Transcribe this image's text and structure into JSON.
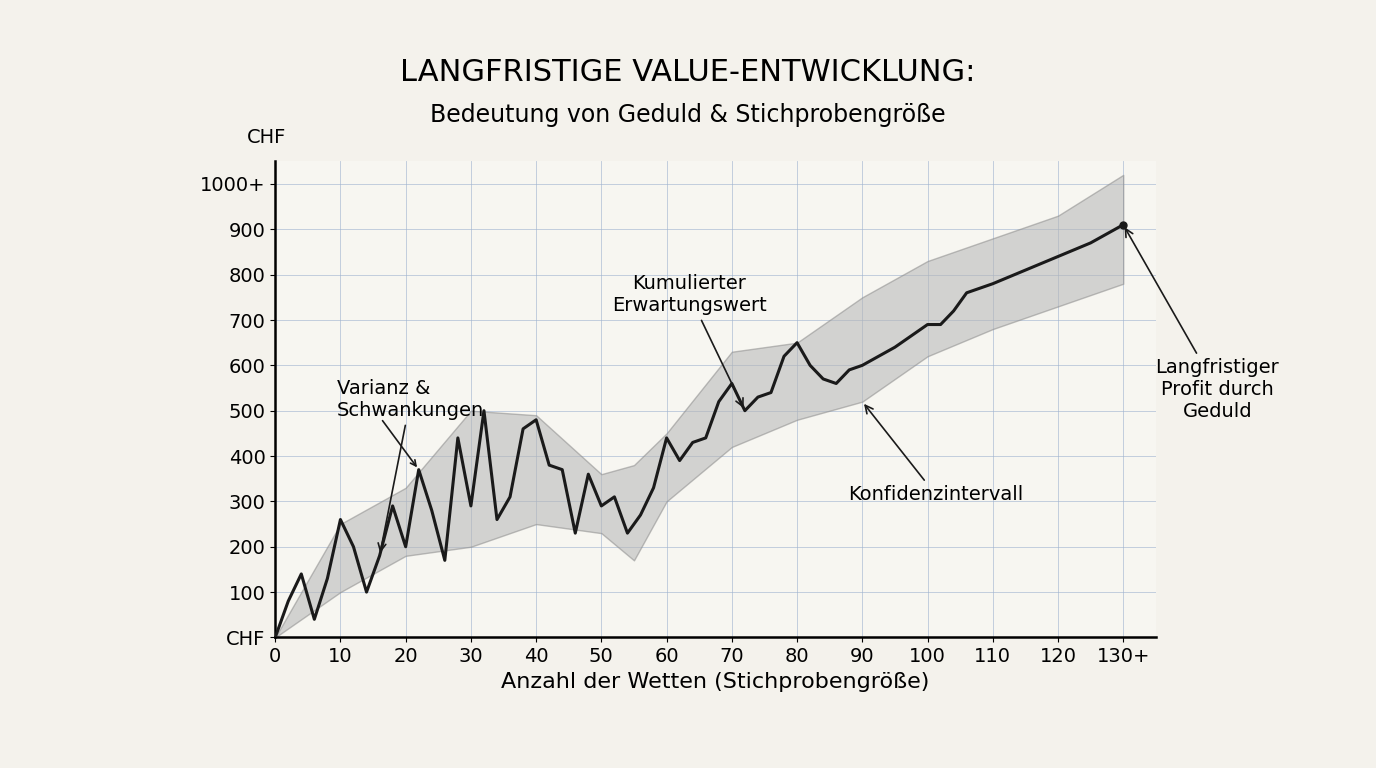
{
  "chart_data": {
    "type": "line",
    "title": "LANGFRISTIGE VALUE-ENTWICKLUNG:",
    "subtitle": "Bedeutung von Geduld & Stichprobengröße",
    "xlabel": "Anzahl der Wetten (Stichprobengröße)",
    "ylabel": "CHF",
    "x": [
      0,
      2,
      4,
      6,
      8,
      10,
      12,
      14,
      16,
      18,
      20,
      22,
      24,
      26,
      28,
      30,
      32,
      34,
      36,
      38,
      40,
      42,
      44,
      46,
      48,
      50,
      52,
      54,
      56,
      58,
      60,
      62,
      64,
      66,
      68,
      70,
      72,
      74,
      76,
      78,
      80,
      82,
      84,
      86,
      88,
      90,
      95,
      100,
      102,
      104,
      106,
      110,
      115,
      120,
      125,
      130
    ],
    "values": [
      0,
      80,
      140,
      40,
      130,
      260,
      200,
      100,
      180,
      290,
      200,
      370,
      280,
      170,
      440,
      290,
      500,
      260,
      310,
      460,
      480,
      380,
      370,
      230,
      360,
      290,
      310,
      230,
      270,
      330,
      440,
      390,
      430,
      440,
      520,
      560,
      500,
      530,
      540,
      620,
      650,
      600,
      570,
      560,
      590,
      600,
      640,
      690,
      690,
      720,
      760,
      780,
      810,
      840,
      870,
      910
    ],
    "ci_x": [
      0,
      10,
      20,
      30,
      40,
      50,
      55,
      60,
      70,
      80,
      90,
      100,
      110,
      120,
      130
    ],
    "ci_lower": [
      0,
      100,
      180,
      200,
      250,
      230,
      170,
      300,
      420,
      480,
      520,
      620,
      680,
      730,
      780
    ],
    "ci_upper": [
      0,
      250,
      330,
      500,
      490,
      360,
      380,
      450,
      630,
      650,
      750,
      830,
      880,
      930,
      1020
    ],
    "color": "#1a1a1a",
    "band_color": "#b5b5b5",
    "xlim": [
      0,
      135
    ],
    "ylim": [
      0,
      1050
    ],
    "xticks": [
      0,
      10,
      20,
      30,
      40,
      50,
      60,
      70,
      80,
      90,
      100,
      110,
      120,
      {
        "value": 130,
        "label": "130+"
      }
    ],
    "yticks": [
      {
        "value": 0,
        "label": "CHF"
      },
      100,
      200,
      300,
      400,
      500,
      600,
      700,
      800,
      900,
      {
        "value": 1000,
        "label": "1000+"
      }
    ],
    "grid": true,
    "annotations": {
      "variance": "Varianz &\nSchwankungen",
      "expected": "Kumulierter\nErwartungswert",
      "ci": "Konfidenzintervall",
      "profit": "Langfristiger\nProfit durch\nGeduld"
    }
  }
}
